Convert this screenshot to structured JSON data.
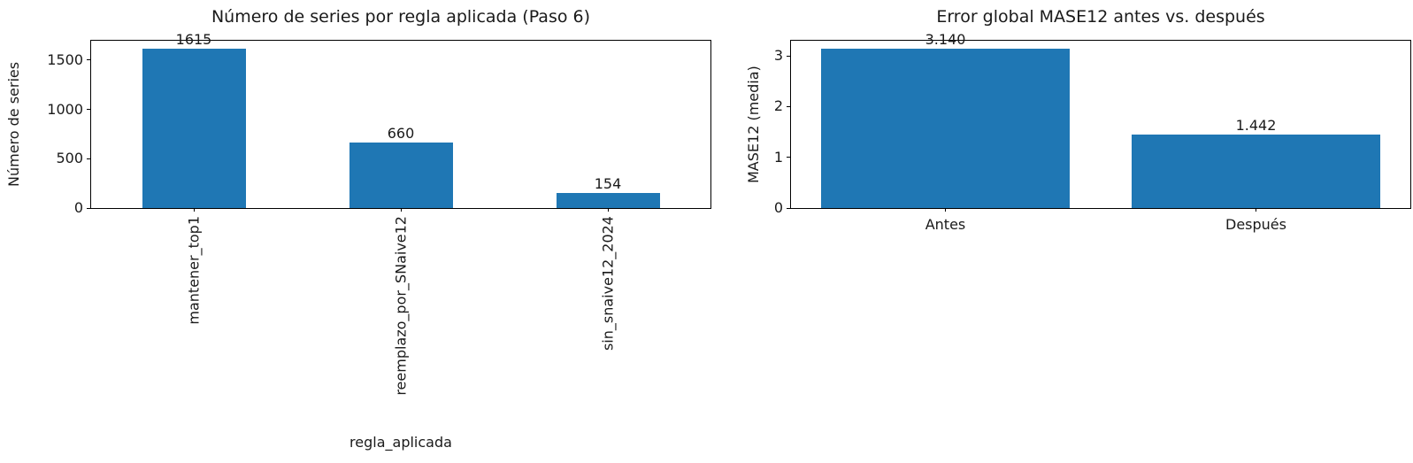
{
  "figure": {
    "background": "#ffffff",
    "bar_color": "#1f77b4",
    "spine_color": "#000000",
    "text_color": "#1a1a1a"
  },
  "chart_data": [
    {
      "type": "bar",
      "title": "Número de series por regla aplicada (Paso 6)",
      "xlabel": "regla_aplicada",
      "ylabel": "Número de series",
      "categories": [
        "mantener_top1",
        "reemplazo_por_SNaive12",
        "sin_snaive12_2024"
      ],
      "values": [
        1615,
        660,
        154
      ],
      "value_labels": [
        "1615",
        "660",
        "154"
      ],
      "yticks": [
        0,
        500,
        1000,
        1500
      ],
      "ylim": [
        0,
        1695.75
      ],
      "bar_width_ratio": 0.5,
      "xtick_rotation": 90,
      "grid": false,
      "legend": null
    },
    {
      "type": "bar",
      "title": "Error global MASE12 antes vs. después",
      "xlabel": "",
      "ylabel": "MASE12 (media)",
      "categories": [
        "Antes",
        "Después"
      ],
      "values": [
        3.14,
        1.442
      ],
      "value_labels": [
        "3.140",
        "1.442"
      ],
      "yticks": [
        0,
        1,
        2,
        3
      ],
      "ylim": [
        0,
        3.297
      ],
      "bar_width_ratio": 0.8,
      "xtick_rotation": 0,
      "grid": false,
      "legend": null
    }
  ]
}
